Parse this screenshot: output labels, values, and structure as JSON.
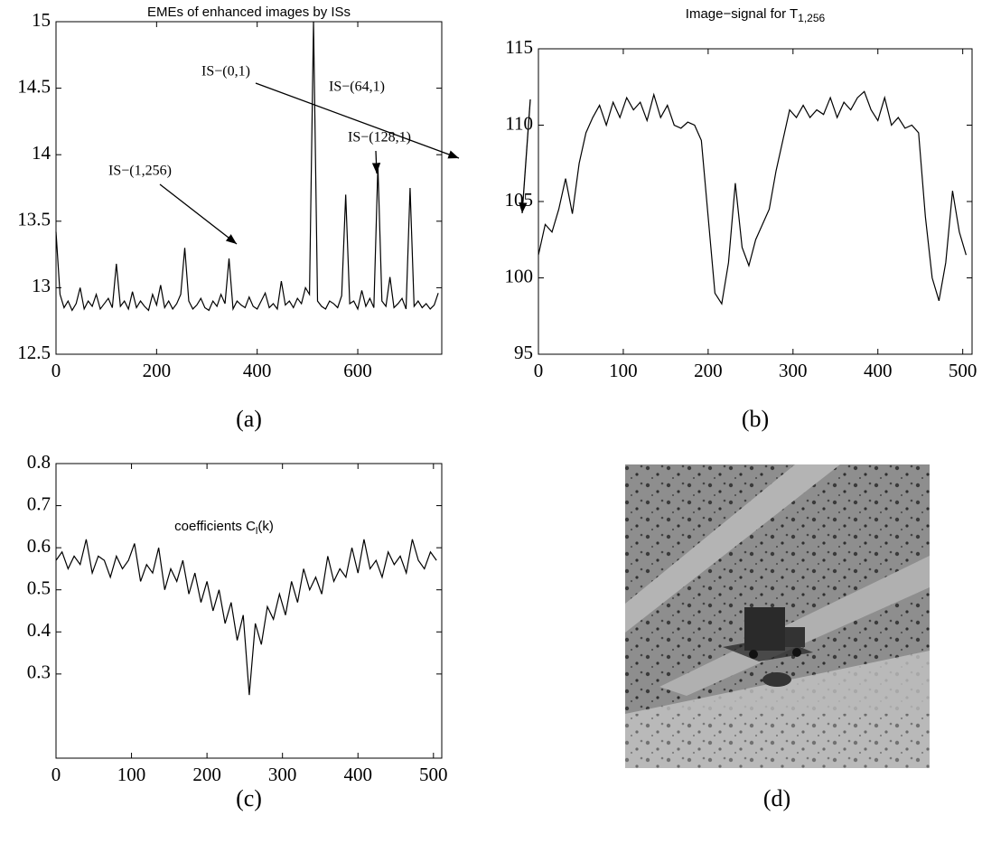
{
  "chart_data": [
    {
      "type": "line",
      "title": "EMEs of enhanced images by ISs",
      "label": "(a)",
      "annotations": [
        "IS−(1,256)",
        "IS−(0,1)",
        "IS−(64,1)",
        "IS−(128,1)"
      ],
      "color": "#000000",
      "x": [
        0,
        8,
        16,
        24,
        32,
        40,
        48,
        56,
        64,
        72,
        80,
        88,
        96,
        104,
        112,
        120,
        128,
        136,
        144,
        152,
        160,
        168,
        176,
        184,
        192,
        200,
        208,
        216,
        224,
        232,
        240,
        248,
        256,
        264,
        272,
        280,
        288,
        296,
        304,
        312,
        320,
        328,
        336,
        344,
        352,
        360,
        368,
        376,
        384,
        392,
        400,
        408,
        416,
        424,
        432,
        440,
        448,
        456,
        464,
        472,
        480,
        488,
        496,
        504,
        512,
        520,
        528,
        536,
        544,
        552,
        560,
        568,
        576,
        584,
        592,
        600,
        608,
        616,
        624,
        632,
        640,
        648,
        656,
        664,
        672,
        680,
        688,
        696,
        704,
        712,
        720,
        728,
        736,
        744,
        752,
        760
      ],
      "values": [
        13.42,
        12.95,
        12.85,
        12.9,
        12.83,
        12.88,
        13.0,
        12.84,
        12.9,
        12.86,
        12.95,
        12.84,
        12.88,
        12.92,
        12.85,
        13.18,
        12.86,
        12.9,
        12.84,
        12.97,
        12.85,
        12.9,
        12.86,
        12.83,
        12.95,
        12.87,
        13.02,
        12.85,
        12.9,
        12.84,
        12.88,
        12.95,
        13.3,
        12.9,
        12.84,
        12.87,
        12.92,
        12.85,
        12.83,
        12.9,
        12.86,
        12.95,
        12.88,
        13.22,
        12.84,
        12.9,
        12.87,
        12.85,
        12.93,
        12.86,
        12.84,
        12.9,
        12.96,
        12.85,
        12.88,
        12.84,
        13.05,
        12.87,
        12.9,
        12.85,
        12.92,
        12.88,
        13.0,
        12.95,
        15.0,
        12.9,
        12.86,
        12.84,
        12.9,
        12.88,
        12.85,
        12.94,
        13.7,
        12.88,
        12.9,
        12.84,
        12.98,
        12.86,
        12.92,
        12.85,
        13.92,
        12.9,
        12.86,
        13.08,
        12.85,
        12.88,
        12.92,
        12.84,
        13.75,
        12.86,
        12.9,
        12.85,
        12.88,
        12.84,
        12.87,
        12.96
      ],
      "xlim": [
        0,
        767
      ],
      "xticks": [
        0,
        200,
        400,
        600
      ],
      "ylim": [
        12.5,
        15
      ],
      "yticks": [
        12.5,
        13,
        13.5,
        14,
        14.5,
        15
      ]
    },
    {
      "type": "line",
      "title": "Image−signal for T",
      "title_subscript": "1,256",
      "label": "(b)",
      "color": "#000000",
      "x": [
        0,
        8,
        16,
        24,
        32,
        40,
        48,
        56,
        64,
        72,
        80,
        88,
        96,
        104,
        112,
        120,
        128,
        136,
        144,
        152,
        160,
        168,
        176,
        184,
        192,
        200,
        208,
        216,
        224,
        232,
        240,
        248,
        256,
        264,
        272,
        280,
        288,
        296,
        304,
        312,
        320,
        328,
        336,
        344,
        352,
        360,
        368,
        376,
        384,
        392,
        400,
        408,
        416,
        424,
        432,
        440,
        448,
        456,
        464,
        472,
        480,
        488,
        496,
        504
      ],
      "values": [
        101.5,
        103.5,
        103,
        104.5,
        106.5,
        104.2,
        107.5,
        109.5,
        110.5,
        111.3,
        110,
        111.5,
        110.5,
        111.8,
        111,
        111.5,
        110.3,
        112,
        110.5,
        111.3,
        110,
        109.8,
        110.2,
        110,
        109,
        104,
        99,
        98.3,
        101,
        106.2,
        102,
        100.8,
        102.5,
        103.5,
        104.5,
        107,
        109,
        111,
        110.5,
        111.3,
        110.5,
        111,
        110.7,
        111.8,
        110.5,
        111.5,
        111,
        111.8,
        112.2,
        111,
        110.3,
        111.8,
        110,
        110.5,
        109.8,
        110,
        109.5,
        104,
        100,
        98.5,
        101,
        105.7,
        103,
        101.5
      ],
      "xlim": [
        0,
        511
      ],
      "xticks": [
        0,
        100,
        200,
        300,
        400,
        500
      ],
      "ylim": [
        95,
        115
      ],
      "yticks": [
        95,
        100,
        105,
        110,
        115
      ]
    },
    {
      "type": "line",
      "annotation": {
        "text": "coefficients C",
        "subscript": "l",
        "suffix": "(k)"
      },
      "label": "(c)",
      "color": "#000000",
      "x": [
        0,
        8,
        16,
        24,
        32,
        40,
        48,
        56,
        64,
        72,
        80,
        88,
        96,
        104,
        112,
        120,
        128,
        136,
        144,
        152,
        160,
        168,
        176,
        184,
        192,
        200,
        208,
        216,
        224,
        232,
        240,
        248,
        256,
        264,
        272,
        280,
        288,
        296,
        304,
        312,
        320,
        328,
        336,
        344,
        352,
        360,
        368,
        376,
        384,
        392,
        400,
        408,
        416,
        424,
        432,
        440,
        448,
        456,
        464,
        472,
        480,
        488,
        496,
        504
      ],
      "values": [
        0.57,
        0.59,
        0.55,
        0.58,
        0.56,
        0.62,
        0.54,
        0.58,
        0.57,
        0.53,
        0.58,
        0.55,
        0.57,
        0.61,
        0.52,
        0.56,
        0.54,
        0.6,
        0.5,
        0.55,
        0.52,
        0.57,
        0.49,
        0.54,
        0.47,
        0.52,
        0.45,
        0.5,
        0.42,
        0.47,
        0.38,
        0.44,
        0.25,
        0.42,
        0.37,
        0.46,
        0.43,
        0.49,
        0.44,
        0.52,
        0.47,
        0.55,
        0.5,
        0.53,
        0.49,
        0.58,
        0.52,
        0.55,
        0.53,
        0.6,
        0.54,
        0.62,
        0.55,
        0.57,
        0.53,
        0.59,
        0.56,
        0.58,
        0.54,
        0.62,
        0.57,
        0.55,
        0.59,
        0.57
      ],
      "xlim": [
        0,
        511
      ],
      "xticks": [
        0,
        100,
        200,
        300,
        400,
        500
      ],
      "ylim": [
        0.1,
        0.8
      ],
      "yticks": [
        0.3,
        0.4,
        0.5,
        0.6,
        0.7,
        0.8
      ]
    }
  ],
  "image": {
    "label": "(d)"
  }
}
